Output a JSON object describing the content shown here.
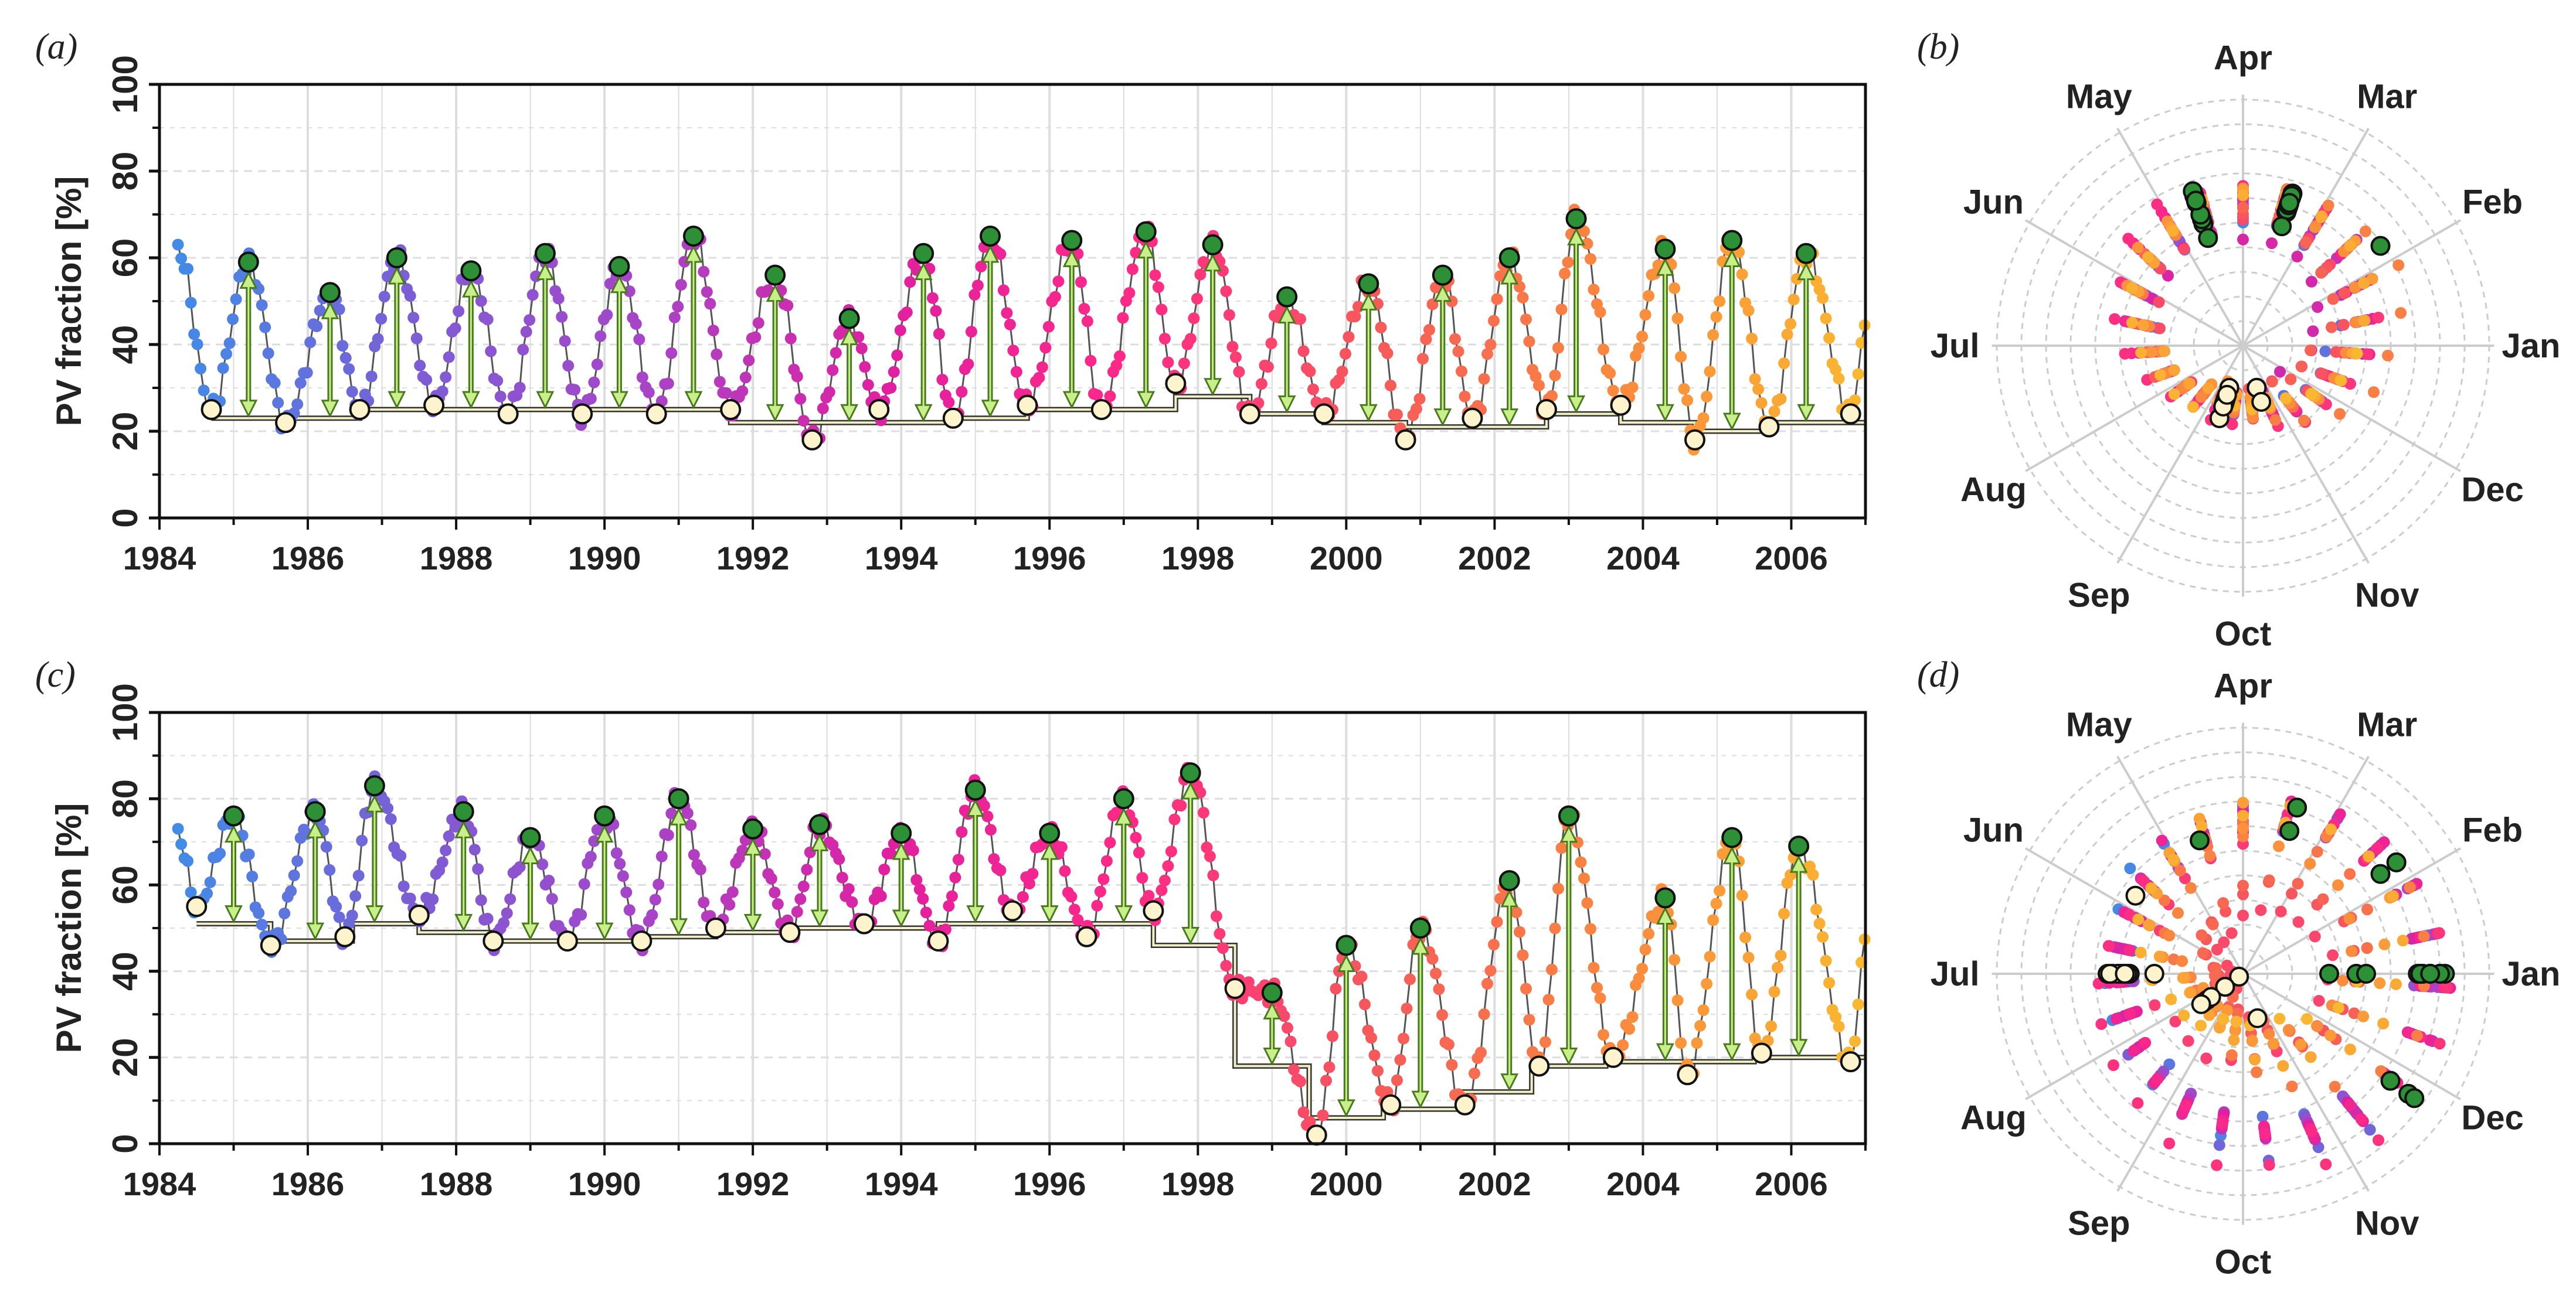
{
  "colors": {
    "gradient": [
      "#3d8fe8",
      "#7a5fd6",
      "#a844c8",
      "#e020a0",
      "#ff2a86",
      "#f75a5a",
      "#fa8a3e",
      "#fab830"
    ],
    "peak_fill": "#2d8f36",
    "trough_fill": "#fdf3cc",
    "arrow_fill": "#c9ef8a",
    "arrow_stroke": "#4a7a1e",
    "baseline_outer": "#333333",
    "baseline_inner": "#f2efc4",
    "grid": "#dddddd",
    "radial_grid": "#cccccc"
  },
  "panels": {
    "a": {
      "label": "(a)"
    },
    "b": {
      "label": "(b)"
    },
    "c": {
      "label": "(c)"
    },
    "d": {
      "label": "(d)"
    }
  },
  "chart_data": [
    {
      "id": "a",
      "type": "scatter",
      "panel_label": "(a)",
      "title": "",
      "xlabel": "",
      "ylabel": "PV fraction [%]",
      "xlim": [
        1984,
        2007
      ],
      "ylim": [
        0,
        100
      ],
      "xticks": [
        1984,
        1986,
        1988,
        1990,
        1992,
        1994,
        1996,
        1998,
        2000,
        2002,
        2004,
        2006
      ],
      "yticks": [
        0,
        20,
        40,
        60,
        80,
        100
      ],
      "start_value": 62,
      "end_value": 43,
      "peaks": [
        [
          1985.2,
          59
        ],
        [
          1986.3,
          52
        ],
        [
          1987.2,
          60
        ],
        [
          1988.2,
          57
        ],
        [
          1989.2,
          61
        ],
        [
          1990.2,
          58
        ],
        [
          1991.2,
          65
        ],
        [
          1992.3,
          56
        ],
        [
          1993.3,
          46
        ],
        [
          1994.3,
          61
        ],
        [
          1995.2,
          65
        ],
        [
          1996.3,
          64
        ],
        [
          1997.3,
          66
        ],
        [
          1998.2,
          63
        ],
        [
          1999.2,
          51
        ],
        [
          2000.3,
          54
        ],
        [
          2001.3,
          56
        ],
        [
          2002.2,
          60
        ],
        [
          2003.1,
          69
        ],
        [
          2004.3,
          62
        ],
        [
          2005.2,
          64
        ],
        [
          2006.2,
          61
        ]
      ],
      "troughs": [
        [
          1984.7,
          25
        ],
        [
          1985.7,
          22
        ],
        [
          1986.7,
          25
        ],
        [
          1987.7,
          26
        ],
        [
          1988.7,
          24
        ],
        [
          1989.7,
          24
        ],
        [
          1990.7,
          24
        ],
        [
          1991.7,
          25
        ],
        [
          1992.8,
          18
        ],
        [
          1993.7,
          25
        ],
        [
          1994.7,
          23
        ],
        [
          1995.7,
          26
        ],
        [
          1996.7,
          25
        ],
        [
          1997.7,
          31
        ],
        [
          1998.7,
          24
        ],
        [
          1999.7,
          24
        ],
        [
          2000.8,
          18
        ],
        [
          2001.7,
          23
        ],
        [
          2002.7,
          25
        ],
        [
          2003.7,
          26
        ],
        [
          2004.7,
          18
        ],
        [
          2005.7,
          21
        ],
        [
          2006.8,
          24
        ]
      ],
      "baseline": [
        [
          1984.7,
          23
        ],
        [
          1986.7,
          25
        ],
        [
          1991.7,
          22
        ],
        [
          1994.7,
          23
        ],
        [
          1995.7,
          25
        ],
        [
          1997.7,
          28
        ],
        [
          1998.7,
          24
        ],
        [
          1999.7,
          22
        ],
        [
          2000.8,
          21
        ],
        [
          2002.7,
          24
        ],
        [
          2003.7,
          22
        ],
        [
          2004.7,
          20
        ],
        [
          2005.7,
          22
        ],
        [
          2007.0,
          22
        ]
      ]
    },
    {
      "id": "b",
      "type": "polar",
      "panel_label": "(b)",
      "months": [
        "Jan",
        "Feb",
        "Mar",
        "Apr",
        "May",
        "Jun",
        "Jul",
        "Aug",
        "Sep",
        "Oct",
        "Nov",
        "Dec"
      ],
      "r_range": [
        0,
        100
      ],
      "peaks": [
        [
          1985.2,
          59
        ],
        [
          1986.3,
          52
        ],
        [
          1987.2,
          60
        ],
        [
          1988.2,
          57
        ],
        [
          1989.2,
          61
        ],
        [
          1990.2,
          58
        ],
        [
          1991.2,
          65
        ],
        [
          1992.3,
          56
        ],
        [
          1993.3,
          46
        ],
        [
          1994.3,
          61
        ],
        [
          1995.2,
          65
        ],
        [
          1996.3,
          64
        ],
        [
          1997.3,
          66
        ],
        [
          1998.2,
          63
        ],
        [
          1999.2,
          51
        ],
        [
          2000.3,
          54
        ],
        [
          2001.3,
          56
        ],
        [
          2002.2,
          60
        ],
        [
          2003.1,
          69
        ],
        [
          2004.3,
          62
        ],
        [
          2005.2,
          64
        ],
        [
          2006.2,
          61
        ]
      ],
      "troughs": [
        [
          1984.7,
          25
        ],
        [
          1985.7,
          22
        ],
        [
          1986.7,
          25
        ],
        [
          1987.7,
          26
        ],
        [
          1988.7,
          24
        ],
        [
          1989.7,
          24
        ],
        [
          1990.7,
          24
        ],
        [
          1991.7,
          25
        ],
        [
          1992.8,
          18
        ],
        [
          1993.7,
          25
        ],
        [
          1994.7,
          23
        ],
        [
          1995.7,
          26
        ],
        [
          1996.7,
          25
        ],
        [
          1997.7,
          31
        ],
        [
          1998.7,
          24
        ],
        [
          1999.7,
          24
        ],
        [
          2000.8,
          18
        ],
        [
          2001.7,
          23
        ],
        [
          2002.7,
          25
        ],
        [
          2003.7,
          26
        ],
        [
          2004.7,
          18
        ],
        [
          2005.7,
          21
        ],
        [
          2006.8,
          24
        ]
      ]
    },
    {
      "id": "c",
      "type": "scatter",
      "panel_label": "(c)",
      "title": "",
      "xlabel": "",
      "ylabel": "PV fraction [%]",
      "xlim": [
        1984,
        2007
      ],
      "ylim": [
        0,
        100
      ],
      "xticks": [
        1984,
        1986,
        1988,
        1990,
        1992,
        1994,
        1996,
        1998,
        2000,
        2002,
        2004,
        2006
      ],
      "yticks": [
        0,
        20,
        40,
        60,
        80,
        100
      ],
      "start_value": 72,
      "end_value": 46,
      "peaks": [
        [
          1985.0,
          76
        ],
        [
          1986.1,
          77
        ],
        [
          1986.9,
          83
        ],
        [
          1988.1,
          77
        ],
        [
          1989.0,
          71
        ],
        [
          1990.0,
          76
        ],
        [
          1991.0,
          80
        ],
        [
          1992.0,
          73
        ],
        [
          1992.9,
          74
        ],
        [
          1994.0,
          72
        ],
        [
          1995.0,
          82
        ],
        [
          1996.0,
          72
        ],
        [
          1997.0,
          80
        ],
        [
          1997.9,
          86
        ],
        [
          1999.0,
          35
        ],
        [
          2000.0,
          46
        ],
        [
          2001.0,
          50
        ],
        [
          2002.2,
          61
        ],
        [
          2003.0,
          76
        ],
        [
          2004.3,
          57
        ],
        [
          2005.2,
          71
        ],
        [
          2006.1,
          69
        ]
      ],
      "troughs": [
        [
          1984.5,
          55
        ],
        [
          1985.5,
          46
        ],
        [
          1986.5,
          48
        ],
        [
          1987.5,
          53
        ],
        [
          1988.5,
          47
        ],
        [
          1989.5,
          47
        ],
        [
          1990.5,
          47
        ],
        [
          1991.5,
          50
        ],
        [
          1992.5,
          49
        ],
        [
          1993.5,
          51
        ],
        [
          1994.5,
          47
        ],
        [
          1995.5,
          54
        ],
        [
          1996.5,
          48
        ],
        [
          1997.4,
          54
        ],
        [
          1998.5,
          36
        ],
        [
          1999.6,
          2
        ],
        [
          2000.6,
          9
        ],
        [
          2001.6,
          9
        ],
        [
          2002.6,
          18
        ],
        [
          2003.6,
          20
        ],
        [
          2004.6,
          16
        ],
        [
          2005.6,
          21
        ],
        [
          2006.8,
          19
        ]
      ],
      "baseline": [
        [
          1984.5,
          51
        ],
        [
          1985.5,
          47
        ],
        [
          1986.6,
          51
        ],
        [
          1987.5,
          49
        ],
        [
          1988.5,
          47
        ],
        [
          1989.5,
          47
        ],
        [
          1990.5,
          48
        ],
        [
          1991.5,
          49
        ],
        [
          1992.5,
          50
        ],
        [
          1993.5,
          50
        ],
        [
          1994.5,
          51
        ],
        [
          1995.5,
          51
        ],
        [
          1996.5,
          51
        ],
        [
          1997.4,
          46
        ],
        [
          1998.5,
          18
        ],
        [
          1999.5,
          6
        ],
        [
          2000.5,
          8
        ],
        [
          2001.5,
          12
        ],
        [
          2002.5,
          18
        ],
        [
          2003.5,
          19
        ],
        [
          2005.5,
          20
        ],
        [
          2007.0,
          20
        ]
      ]
    },
    {
      "id": "d",
      "type": "polar",
      "panel_label": "(d)",
      "months": [
        "Jan",
        "Feb",
        "Mar",
        "Apr",
        "May",
        "Jun",
        "Jul",
        "Aug",
        "Sep",
        "Oct",
        "Nov",
        "Dec"
      ],
      "r_range": [
        0,
        100
      ],
      "peaks": [
        [
          1985.0,
          76
        ],
        [
          1986.1,
          77
        ],
        [
          1986.9,
          83
        ],
        [
          1988.1,
          77
        ],
        [
          1989.0,
          71
        ],
        [
          1990.0,
          76
        ],
        [
          1991.0,
          80
        ],
        [
          1992.0,
          73
        ],
        [
          1992.9,
          74
        ],
        [
          1994.0,
          72
        ],
        [
          1995.0,
          82
        ],
        [
          1996.0,
          72
        ],
        [
          1997.0,
          80
        ],
        [
          1997.9,
          86
        ],
        [
          1999.0,
          35
        ],
        [
          2000.0,
          46
        ],
        [
          2001.0,
          50
        ],
        [
          2002.2,
          61
        ],
        [
          2003.0,
          76
        ],
        [
          2004.3,
          57
        ],
        [
          2005.2,
          71
        ],
        [
          2006.1,
          69
        ]
      ],
      "troughs": [
        [
          1984.5,
          55
        ],
        [
          1985.5,
          46
        ],
        [
          1986.5,
          48
        ],
        [
          1987.5,
          53
        ],
        [
          1988.5,
          47
        ],
        [
          1989.5,
          47
        ],
        [
          1990.5,
          47
        ],
        [
          1991.5,
          50
        ],
        [
          1992.5,
          49
        ],
        [
          1993.5,
          51
        ],
        [
          1994.5,
          47
        ],
        [
          1995.5,
          54
        ],
        [
          1996.5,
          48
        ],
        [
          1997.4,
          54
        ],
        [
          1998.5,
          36
        ],
        [
          1999.6,
          2
        ],
        [
          2000.6,
          9
        ],
        [
          2001.6,
          9
        ],
        [
          2002.6,
          18
        ],
        [
          2003.6,
          20
        ],
        [
          2004.6,
          16
        ],
        [
          2005.6,
          21
        ],
        [
          2006.8,
          19
        ]
      ]
    }
  ]
}
